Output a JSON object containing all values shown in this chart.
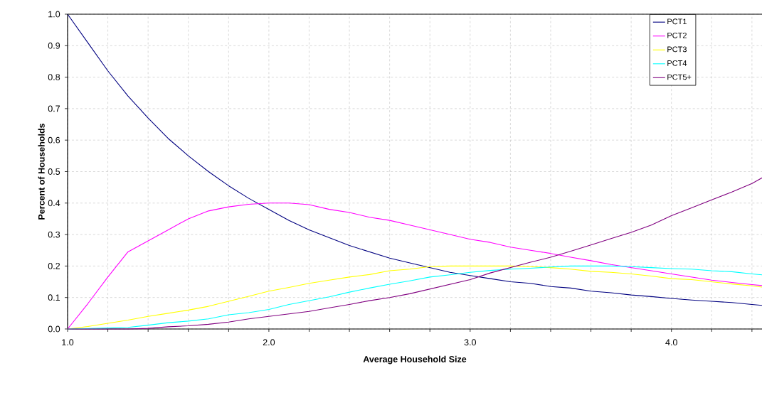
{
  "chart_data": {
    "type": "line",
    "xlabel": "Average Household Size",
    "ylabel": "Percent of Households",
    "x": [
      1.0,
      1.1,
      1.2,
      1.3,
      1.4,
      1.5,
      1.6,
      1.7,
      1.8,
      1.9,
      2.0,
      2.1,
      2.2,
      2.3,
      2.4,
      2.5,
      2.6,
      2.7,
      2.8,
      2.9,
      3.0,
      3.1,
      3.2,
      3.3,
      3.4,
      3.5,
      3.6,
      3.7,
      3.8,
      3.9,
      4.0,
      4.1,
      4.2,
      4.3,
      4.4,
      4.45
    ],
    "series": [
      {
        "name": "PCT1",
        "color": "#000080",
        "values": [
          1.0,
          0.91,
          0.82,
          0.74,
          0.67,
          0.605,
          0.55,
          0.5,
          0.455,
          0.415,
          0.38,
          0.345,
          0.315,
          0.29,
          0.265,
          0.245,
          0.225,
          0.21,
          0.195,
          0.18,
          0.17,
          0.16,
          0.15,
          0.145,
          0.135,
          0.13,
          0.12,
          0.115,
          0.108,
          0.103,
          0.097,
          0.092,
          0.088,
          0.084,
          0.078,
          0.075
        ]
      },
      {
        "name": "PCT2",
        "color": "#ff00ff",
        "values": [
          0.0,
          0.08,
          0.165,
          0.245,
          0.28,
          0.315,
          0.35,
          0.375,
          0.388,
          0.396,
          0.4,
          0.4,
          0.395,
          0.38,
          0.37,
          0.355,
          0.345,
          0.33,
          0.315,
          0.3,
          0.285,
          0.275,
          0.26,
          0.25,
          0.24,
          0.228,
          0.217,
          0.205,
          0.195,
          0.185,
          0.175,
          0.165,
          0.155,
          0.148,
          0.141,
          0.138
        ]
      },
      {
        "name": "PCT3",
        "color": "#ffff00",
        "values": [
          0.0,
          0.008,
          0.018,
          0.028,
          0.04,
          0.05,
          0.06,
          0.072,
          0.088,
          0.104,
          0.12,
          0.132,
          0.145,
          0.155,
          0.165,
          0.173,
          0.185,
          0.19,
          0.198,
          0.2,
          0.2,
          0.2,
          0.2,
          0.198,
          0.195,
          0.19,
          0.183,
          0.18,
          0.175,
          0.168,
          0.16,
          0.157,
          0.15,
          0.143,
          0.137,
          0.133
        ]
      },
      {
        "name": "PCT4",
        "color": "#00ffff",
        "values": [
          0.0,
          null,
          0.003,
          0.005,
          0.012,
          0.02,
          0.025,
          0.032,
          0.045,
          0.052,
          0.062,
          0.078,
          0.09,
          0.102,
          0.117,
          0.13,
          0.142,
          0.153,
          0.165,
          0.172,
          0.18,
          0.186,
          0.19,
          0.193,
          0.197,
          0.2,
          0.2,
          0.2,
          0.198,
          0.195,
          0.192,
          0.19,
          0.185,
          0.182,
          0.175,
          0.172
        ]
      },
      {
        "name": "PCT5+",
        "color": "#800080",
        "values": [
          0.0,
          0.0,
          0.0,
          0.0,
          0.002,
          0.007,
          0.01,
          0.015,
          0.022,
          0.032,
          0.04,
          0.048,
          0.056,
          0.067,
          0.078,
          0.09,
          0.1,
          0.112,
          0.127,
          0.142,
          0.157,
          0.178,
          0.195,
          0.212,
          0.228,
          0.247,
          0.267,
          0.287,
          0.307,
          0.33,
          0.36,
          0.385,
          0.41,
          0.435,
          0.462,
          0.48
        ]
      }
    ],
    "xlim": [
      1.0,
      4.45
    ],
    "ylim": [
      0.0,
      1.0
    ],
    "xticks": [
      {
        "value": 1.0,
        "label": "1.0"
      },
      {
        "value": 1.2,
        "label": null
      },
      {
        "value": 1.4,
        "label": null
      },
      {
        "value": 1.6,
        "label": null
      },
      {
        "value": 1.8,
        "label": null
      },
      {
        "value": 2.0,
        "label": "2.0"
      },
      {
        "value": 2.2,
        "label": null
      },
      {
        "value": 2.4,
        "label": null
      },
      {
        "value": 2.6,
        "label": null
      },
      {
        "value": 2.8,
        "label": null
      },
      {
        "value": 3.0,
        "label": "3.0"
      },
      {
        "value": 3.2,
        "label": null
      },
      {
        "value": 3.4,
        "label": null
      },
      {
        "value": 3.6,
        "label": null
      },
      {
        "value": 3.8,
        "label": null
      },
      {
        "value": 4.0,
        "label": "4.0"
      },
      {
        "value": 4.2,
        "label": null
      },
      {
        "value": 4.4,
        "label": null
      }
    ],
    "yticks": [
      {
        "value": 0.0,
        "label": "0.0"
      },
      {
        "value": 0.1,
        "label": "0.1"
      },
      {
        "value": 0.2,
        "label": "0.2"
      },
      {
        "value": 0.3,
        "label": "0.3"
      },
      {
        "value": 0.4,
        "label": "0.4"
      },
      {
        "value": 0.5,
        "label": "0.5"
      },
      {
        "value": 0.6,
        "label": "0.6"
      },
      {
        "value": 0.7,
        "label": "0.7"
      },
      {
        "value": 0.8,
        "label": "0.8"
      },
      {
        "value": 0.9,
        "label": "0.9"
      },
      {
        "value": 1.0,
        "label": "1.0"
      }
    ],
    "grid": true,
    "legend": "top right",
    "marker": "none",
    "line_style": "solid"
  }
}
